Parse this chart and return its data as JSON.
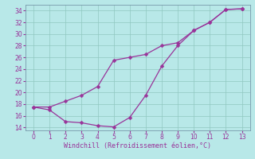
{
  "xlabel": "Windchill (Refroidissement éolien,°C)",
  "bg_color": "#b8e8e8",
  "grid_color": "#90c8c0",
  "line_color": "#993399",
  "spine_color": "#7799aa",
  "xlim": [
    -0.5,
    13.5
  ],
  "ylim": [
    13.5,
    35.0
  ],
  "xticks": [
    0,
    1,
    2,
    3,
    4,
    5,
    6,
    7,
    8,
    9,
    10,
    11,
    12,
    13
  ],
  "yticks": [
    14,
    16,
    18,
    20,
    22,
    24,
    26,
    28,
    30,
    32,
    34
  ],
  "line1_x": [
    0,
    1,
    2,
    3,
    4,
    5,
    6,
    7,
    8,
    9,
    10,
    11,
    12,
    13
  ],
  "line1_y": [
    17.5,
    17.0,
    15.0,
    14.8,
    14.3,
    14.1,
    15.7,
    19.5,
    24.5,
    28.0,
    30.6,
    32.0,
    34.2,
    34.3
  ],
  "line2_x": [
    0,
    1,
    2,
    3,
    4,
    5,
    6,
    7,
    8,
    9,
    10,
    11,
    12,
    13
  ],
  "line2_y": [
    17.5,
    17.5,
    18.5,
    19.5,
    21.0,
    25.5,
    26.0,
    26.5,
    28.0,
    28.5,
    30.6,
    32.0,
    34.2,
    34.3
  ],
  "tick_labelsize": 5.5,
  "xlabel_fontsize": 6.0,
  "marker_size": 2.5,
  "linewidth": 0.9
}
